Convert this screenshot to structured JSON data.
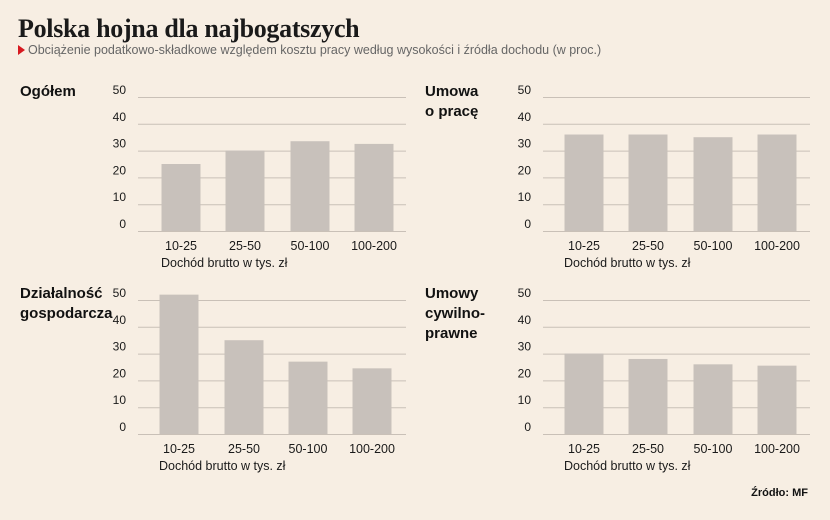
{
  "header": {
    "title": "Polska hojna dla najbogatszych",
    "subtitle": "Obciążenie podatkowo-składkowe względem kosztu pracy według wysokości i źródła dochodu (w proc.)"
  },
  "source": "Źródło: MF",
  "colors": {
    "bar": "#c8c1bb",
    "grid": "#c9c0b7",
    "background": "#f7eee3",
    "marker": "#d71920"
  },
  "chart_data": [
    {
      "type": "bar",
      "title": "Ogółem",
      "categories": [
        "10-25",
        "25-50",
        "50-100",
        "100-200"
      ],
      "values": [
        25,
        30,
        33.5,
        32.5
      ],
      "yticks": [
        "50",
        "40",
        "30",
        "20",
        "10",
        "0"
      ],
      "ylim": [
        0,
        50
      ],
      "xlabel": "Dochód brutto w tys. zł",
      "grid": true
    },
    {
      "type": "bar",
      "title": "Umowa\no pracę",
      "categories": [
        "10-25",
        "25-50",
        "50-100",
        "100-200"
      ],
      "values": [
        36,
        36,
        35,
        36
      ],
      "yticks": [
        "50",
        "40",
        "30",
        "20",
        "10",
        "0"
      ],
      "ylim": [
        0,
        50
      ],
      "xlabel": "Dochód brutto w tys. zł",
      "grid": true
    },
    {
      "type": "bar",
      "title": "Działalność\ngospodarcza",
      "categories": [
        "10-25",
        "25-50",
        "50-100",
        "100-200"
      ],
      "values": [
        52,
        35,
        27,
        24.5
      ],
      "yticks": [
        "50",
        "40",
        "30",
        "20",
        "10",
        "0"
      ],
      "ylim": [
        0,
        50
      ],
      "xlabel": "Dochód brutto w tys. zł",
      "grid": true
    },
    {
      "type": "bar",
      "title": "Umowy\ncywilno-\nprawne",
      "categories": [
        "10-25",
        "25-50",
        "50-100",
        "100-200"
      ],
      "values": [
        30,
        28,
        26,
        25.5
      ],
      "yticks": [
        "50",
        "40",
        "30",
        "20",
        "10",
        "0"
      ],
      "ylim": [
        0,
        50
      ],
      "xlabel": "Dochód brutto w tys. zł",
      "grid": true
    }
  ]
}
